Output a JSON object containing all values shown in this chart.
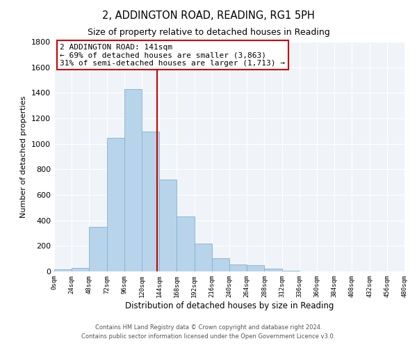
{
  "title": "2, ADDINGTON ROAD, READING, RG1 5PH",
  "subtitle": "Size of property relative to detached houses in Reading",
  "xlabel": "Distribution of detached houses by size in Reading",
  "ylabel": "Number of detached properties",
  "footnote1": "Contains HM Land Registry data © Crown copyright and database right 2024.",
  "footnote2": "Contains public sector information licensed under the Open Government Licence v3.0.",
  "bar_edges": [
    0,
    24,
    48,
    72,
    96,
    120,
    144,
    168,
    192,
    216,
    240,
    264,
    288,
    312,
    336,
    360,
    384,
    408,
    432,
    456,
    480
  ],
  "bar_heights": [
    15,
    30,
    350,
    1050,
    1430,
    1095,
    720,
    430,
    220,
    105,
    55,
    50,
    20,
    5,
    2,
    1,
    0,
    0,
    0,
    0
  ],
  "bar_color": "#b8d4ea",
  "bar_edgecolor": "#7fb3d3",
  "property_sqm": 141,
  "vline_color": "#cc0000",
  "annotation_line1": "2 ADDINGTON ROAD: 141sqm",
  "annotation_line2": "← 69% of detached houses are smaller (3,863)",
  "annotation_line3": "31% of semi-detached houses are larger (1,713) →",
  "box_edgecolor": "#cc0000",
  "xlim": [
    0,
    480
  ],
  "ylim": [
    0,
    1800
  ],
  "yticks": [
    0,
    200,
    400,
    600,
    800,
    1000,
    1200,
    1400,
    1600,
    1800
  ],
  "xtick_labels": [
    "0sqm",
    "24sqm",
    "48sqm",
    "72sqm",
    "96sqm",
    "120sqm",
    "144sqm",
    "168sqm",
    "192sqm",
    "216sqm",
    "240sqm",
    "264sqm",
    "288sqm",
    "312sqm",
    "336sqm",
    "360sqm",
    "384sqm",
    "408sqm",
    "432sqm",
    "456sqm",
    "480sqm"
  ],
  "xtick_positions": [
    0,
    24,
    48,
    72,
    96,
    120,
    144,
    168,
    192,
    216,
    240,
    264,
    288,
    312,
    336,
    360,
    384,
    408,
    432,
    456,
    480
  ],
  "title_fontsize": 10.5,
  "subtitle_fontsize": 9,
  "xlabel_fontsize": 8.5,
  "ylabel_fontsize": 8,
  "xtick_fontsize": 6.5,
  "ytick_fontsize": 8,
  "annotation_fontsize": 8,
  "footnote_fontsize": 6,
  "bg_color": "#f0f4f8"
}
